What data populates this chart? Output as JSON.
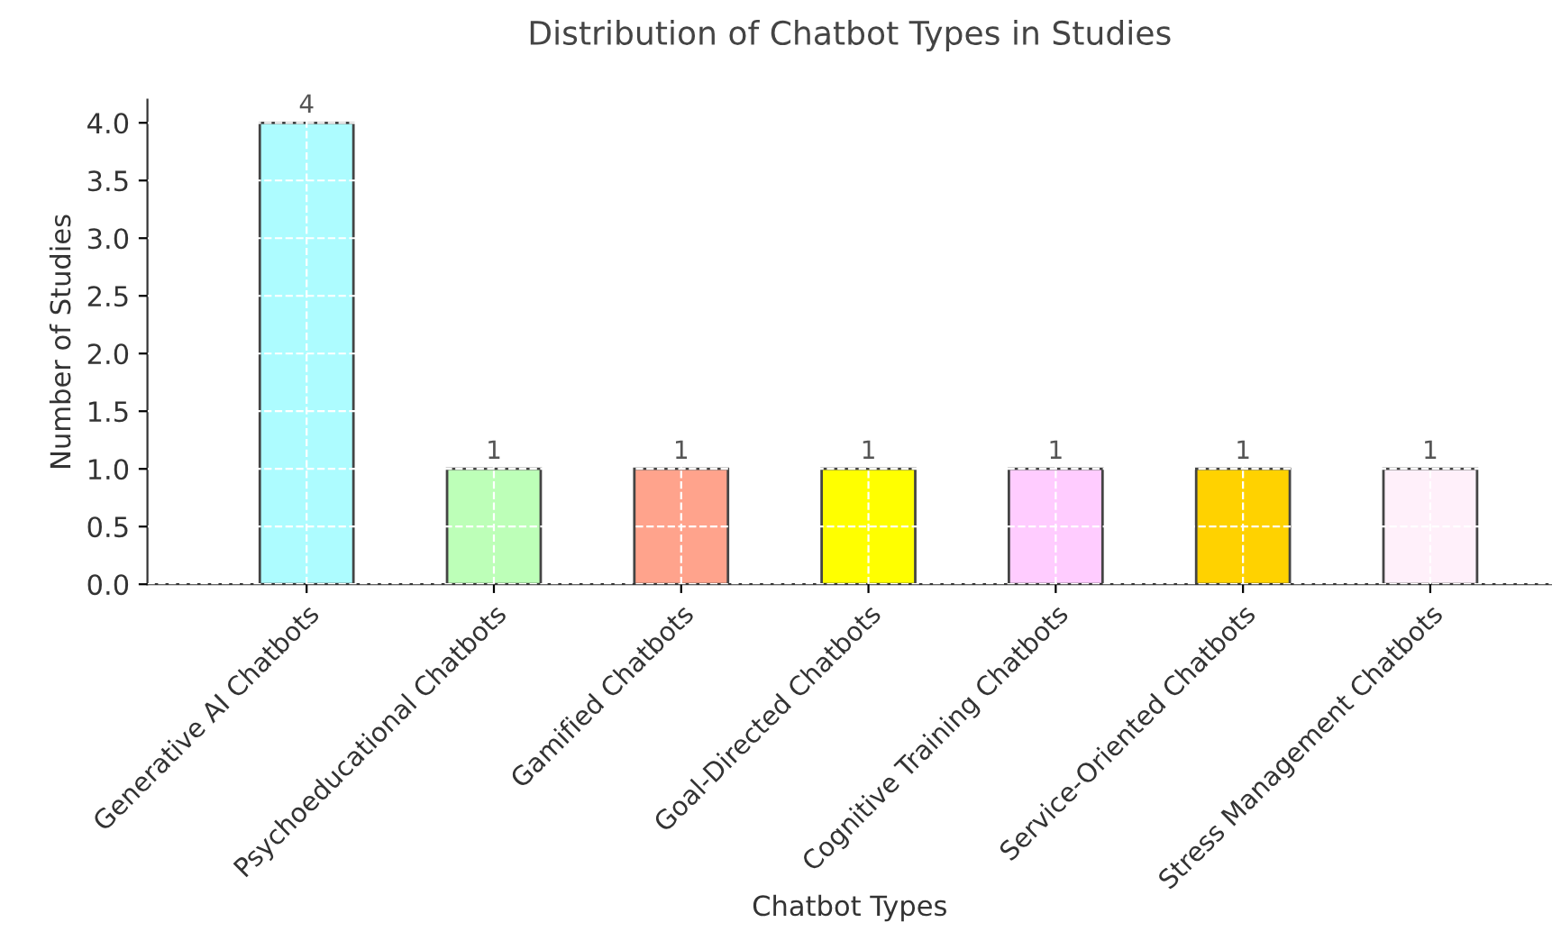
{
  "chart_data": {
    "type": "bar",
    "title": "Distribution of Chatbot Types in Studies",
    "xlabel": "Chatbot Types",
    "ylabel": "Number of Studies",
    "categories": [
      "Generative AI Chatbots",
      "Psychoeducational Chatbots",
      "Gamified Chatbots",
      "Goal-Directed Chatbots",
      "Cognitive Training Chatbots",
      "Service-Oriented Chatbots",
      "Stress Management Chatbots"
    ],
    "values": [
      4,
      1,
      1,
      1,
      1,
      1,
      1
    ],
    "colors": [
      "#adfcff",
      "#bdffb8",
      "#ffa38c",
      "#ffff00",
      "#ffccff",
      "#ffd200",
      "#fff0fa"
    ],
    "ylim": [
      0,
      4.2
    ],
    "yticks": [
      {
        "value": 0,
        "label": "0.0"
      },
      {
        "value": 0.5,
        "label": "0.5"
      },
      {
        "value": 1,
        "label": "1.0"
      },
      {
        "value": 1.5,
        "label": "1.5"
      },
      {
        "value": 2,
        "label": "2.0"
      },
      {
        "value": 2.5,
        "label": "2.5"
      },
      {
        "value": 3,
        "label": "3.0"
      },
      {
        "value": 3.5,
        "label": "3.5"
      },
      {
        "value": 4,
        "label": "4.0"
      }
    ],
    "data_labels": true,
    "grid": true,
    "legend": false
  }
}
